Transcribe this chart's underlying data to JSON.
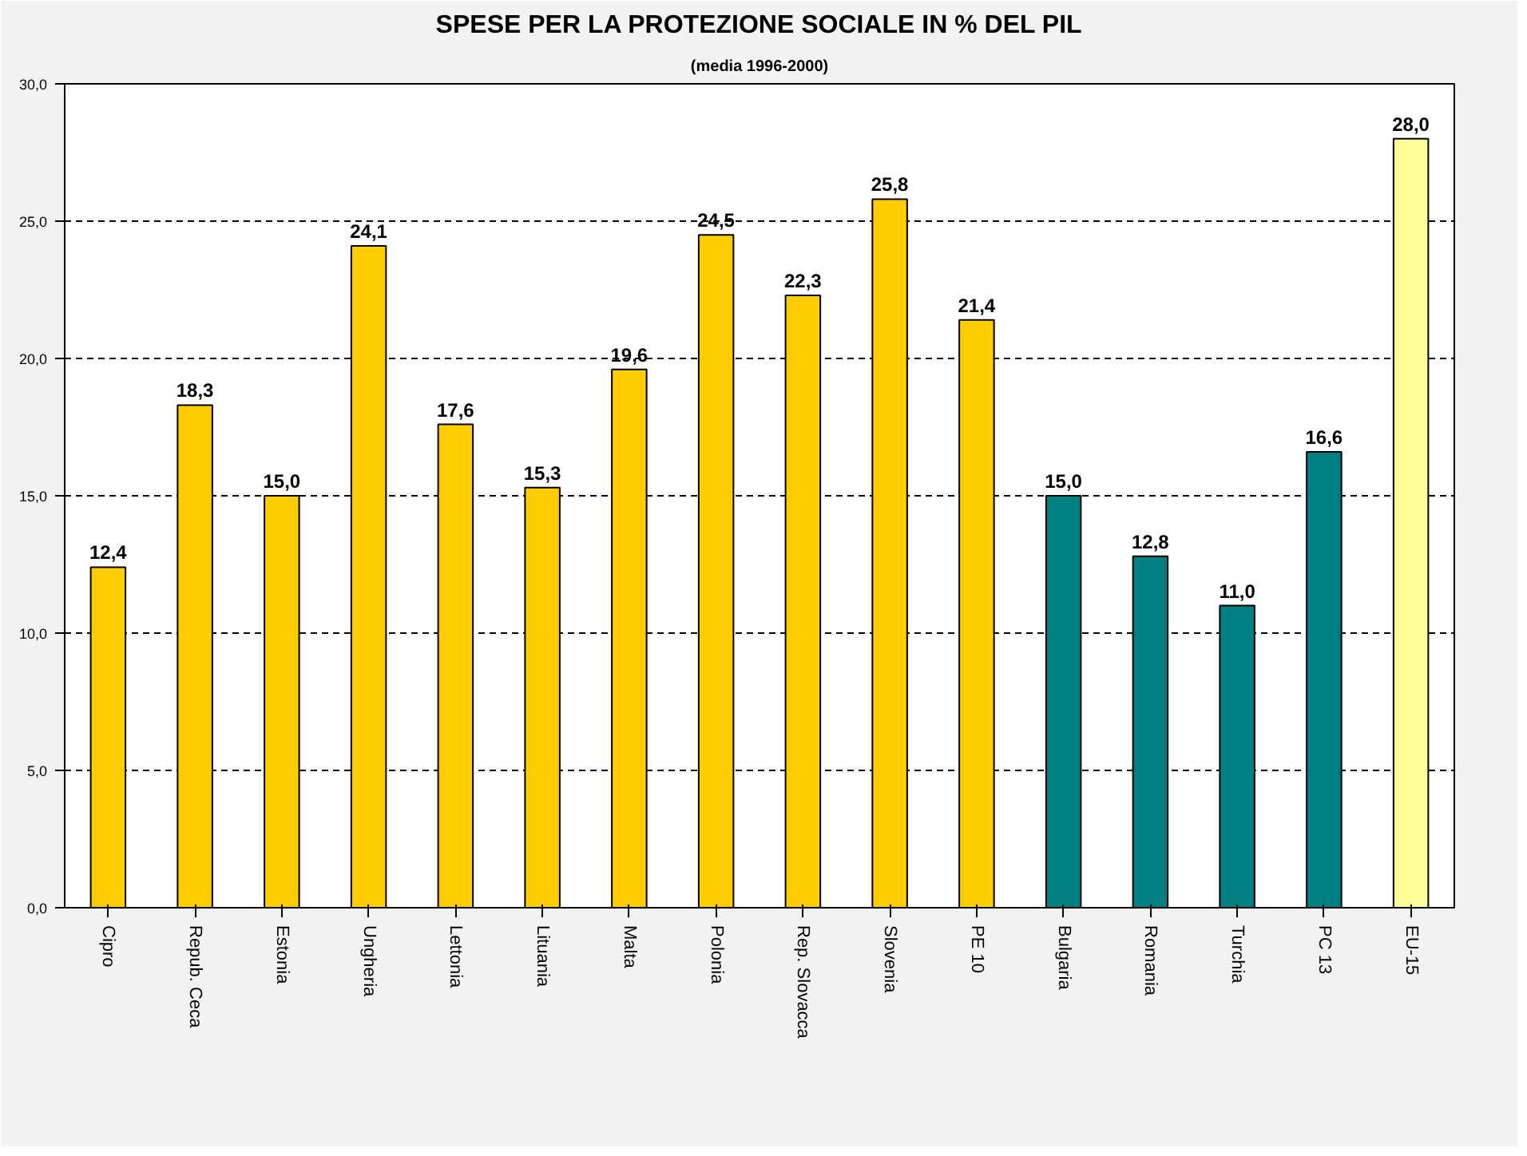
{
  "chart_data": {
    "type": "bar",
    "title": "SPESE PER LA PROTEZIONE SOCIALE IN % DEL PIL",
    "subtitle": "(media 1996-2000)",
    "categories": [
      "Cipro",
      "Repub. Ceca",
      "Estonia",
      "Ungheria",
      "Lettonia",
      "Lituania",
      "Malta",
      "Polonia",
      "Rep. Slovacca",
      "Slovenia",
      "PE 10",
      "Bulgaria",
      "Romania",
      "Turchia",
      "PC 13",
      "EU-15"
    ],
    "values": [
      12.4,
      18.3,
      15.0,
      24.1,
      17.6,
      15.3,
      19.6,
      24.5,
      22.3,
      25.8,
      21.4,
      15.0,
      12.8,
      11.0,
      16.6,
      28.0
    ],
    "value_labels": [
      "12,4",
      "18,3",
      "15,0",
      "24,1",
      "17,6",
      "15,3",
      "19,6",
      "24,5",
      "22,3",
      "25,8",
      "21,4",
      "15,0",
      "12,8",
      "11,0",
      "16,6",
      "28,0"
    ],
    "colors": [
      "#ffcc00",
      "#ffcc00",
      "#ffcc00",
      "#ffcc00",
      "#ffcc00",
      "#ffcc00",
      "#ffcc00",
      "#ffcc00",
      "#ffcc00",
      "#ffcc00",
      "#ffcc00",
      "#008080",
      "#008080",
      "#008080",
      "#008080",
      "#ffff99"
    ],
    "ylim": [
      0,
      30
    ],
    "yticks": [
      {
        "value": 0,
        "label": "0,0"
      },
      {
        "value": 5,
        "label": "5,0"
      },
      {
        "value": 10,
        "label": "10,0"
      },
      {
        "value": 15,
        "label": "15,0"
      },
      {
        "value": 20,
        "label": "20,0"
      },
      {
        "value": 25,
        "label": "25,0"
      },
      {
        "value": 30,
        "label": "30,0"
      }
    ],
    "grid": "y"
  }
}
